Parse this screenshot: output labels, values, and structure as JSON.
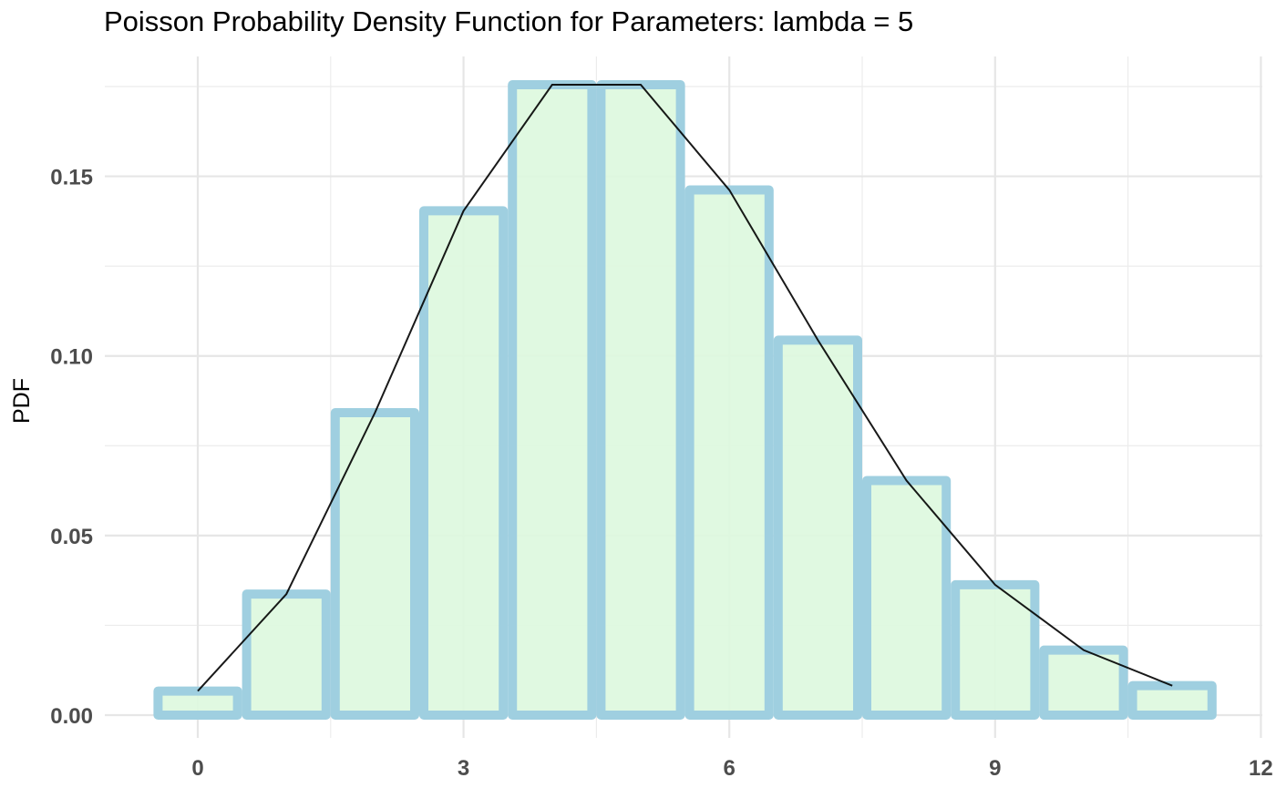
{
  "chart_data": {
    "type": "bar",
    "title": "Poisson Probability Density Function for Parameters: lambda = 5",
    "xlabel": "",
    "ylabel": "PDF",
    "categories": [
      0,
      1,
      2,
      3,
      4,
      5,
      6,
      7,
      8,
      9,
      10,
      11
    ],
    "values": [
      0.0067,
      0.0337,
      0.0842,
      0.1404,
      0.1755,
      0.1755,
      0.1462,
      0.1044,
      0.0653,
      0.0363,
      0.0181,
      0.0082
    ],
    "line": {
      "x": [
        0,
        1,
        2,
        3,
        4,
        5,
        6,
        7,
        8,
        9,
        10,
        11
      ],
      "y": [
        0.0067,
        0.0337,
        0.0842,
        0.1404,
        0.1755,
        0.1755,
        0.1462,
        0.1044,
        0.0653,
        0.0363,
        0.0181,
        0.0082
      ]
    },
    "xlim": [
      -0.7,
      12
    ],
    "ylim": [
      0,
      0.175
    ],
    "x_ticks": [
      0,
      3,
      6,
      9,
      12
    ],
    "x_tick_labels": [
      "0",
      "3",
      "6",
      "9",
      "12"
    ],
    "y_ticks": [
      0,
      0.05,
      0.1,
      0.15
    ],
    "y_tick_labels": [
      "0.00",
      "0.05",
      "0.10",
      "0.15"
    ],
    "grid": true,
    "colors": {
      "bar_fill": "#ddf9de",
      "bar_outline": "#9fcfe0",
      "line": "#000000",
      "grid": "#e6e6e6",
      "grid_minor": "#ececec"
    }
  }
}
